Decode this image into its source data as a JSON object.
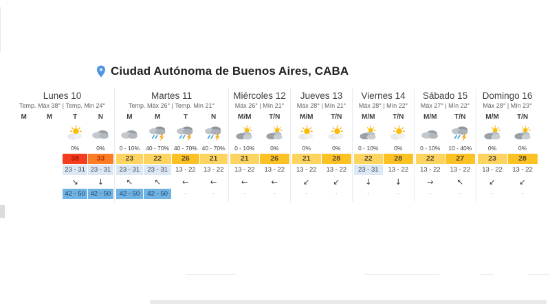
{
  "header": {
    "location_label": "Ciudad Autónoma de Buenos Aires, CABA",
    "pin_color": "#4e97e0"
  },
  "colors": {
    "temp_extreme": "#f53c1e",
    "temp_hot": "#fb7c23",
    "temp_warm_light": "#fdd45f",
    "temp_warm_dark": "#fcc122",
    "wind_range_highlight": "#dce8f5",
    "gust_highlight": "#6fb3e4"
  },
  "days": [
    {
      "name": "Lunes 10",
      "subtitle": "Temp. Máx 38° | Temp. Min 24°",
      "periods": [
        {
          "label": "M",
          "icon": "none",
          "precip": "",
          "temp": "",
          "temp_class": "",
          "range": "",
          "range_class": "",
          "wind": "",
          "gust": "",
          "gust_class": ""
        },
        {
          "label": "M",
          "icon": "none",
          "precip": "",
          "temp": "",
          "temp_class": "",
          "range": "",
          "range_class": "",
          "wind": "",
          "gust": "",
          "gust_class": ""
        },
        {
          "label": "T",
          "icon": "sun-cloud",
          "precip": "0%",
          "temp": "38",
          "temp_class": "t-red",
          "range": "23 - 31",
          "range_class": "bg-bluelight",
          "wind": "↘",
          "gust": "42 - 50",
          "gust_class": "bg-blue"
        },
        {
          "label": "N",
          "icon": "cloud",
          "precip": "0%",
          "temp": "33",
          "temp_class": "t-orange",
          "range": "23 - 31",
          "range_class": "bg-bluelight",
          "wind": "↓",
          "gust": "42 - 50",
          "gust_class": "bg-blue"
        }
      ]
    },
    {
      "name": "Martes 11",
      "subtitle": "Temp. Máx 26° | Temp. Min 21°",
      "periods": [
        {
          "label": "M",
          "icon": "cloud",
          "precip": "0 - 10%",
          "temp": "23",
          "temp_class": "t-amber-l",
          "range": "23 - 31",
          "range_class": "bg-bluelight",
          "wind": "↖",
          "gust": "42 - 50",
          "gust_class": "bg-blue"
        },
        {
          "label": "M",
          "icon": "storm",
          "precip": "40 - 70%",
          "temp": "22",
          "temp_class": "t-amber-l",
          "range": "23 - 31",
          "range_class": "bg-bluelight",
          "wind": "↖",
          "gust": "42 - 50",
          "gust_class": "bg-blue"
        },
        {
          "label": "T",
          "icon": "storm",
          "precip": "40 - 70%",
          "temp": "26",
          "temp_class": "t-amber",
          "range": "13 - 22",
          "range_class": "",
          "wind": "←",
          "gust": "-",
          "gust_class": "dash"
        },
        {
          "label": "N",
          "icon": "storm",
          "precip": "40 - 70%",
          "temp": "21",
          "temp_class": "t-amber-l",
          "range": "13 - 22",
          "range_class": "",
          "wind": "←",
          "gust": "-",
          "gust_class": "dash"
        }
      ]
    },
    {
      "name": "Miércoles 12",
      "subtitle": "Máx 26° | Mín 21°",
      "periods": [
        {
          "label": "M/M",
          "icon": "cloud-sun",
          "precip": "0 - 10%",
          "temp": "21",
          "temp_class": "t-amber-l",
          "range": "13 - 22",
          "range_class": "",
          "wind": "←",
          "gust": "-",
          "gust_class": "dash"
        },
        {
          "label": "T/N",
          "icon": "cloud-sun",
          "precip": "0%",
          "temp": "26",
          "temp_class": "t-amber",
          "range": "13 - 22",
          "range_class": "",
          "wind": "←",
          "gust": "-",
          "gust_class": "dash"
        }
      ]
    },
    {
      "name": "Jueves 13",
      "subtitle": "Máx 28° | Mín 21°",
      "periods": [
        {
          "label": "M/M",
          "icon": "sun-cloud",
          "precip": "0%",
          "temp": "21",
          "temp_class": "t-amber-l",
          "range": "13 - 22",
          "range_class": "",
          "wind": "↙",
          "gust": "-",
          "gust_class": "dash"
        },
        {
          "label": "T/N",
          "icon": "sun-cloud",
          "precip": "0%",
          "temp": "28",
          "temp_class": "t-amber",
          "range": "13 - 22",
          "range_class": "",
          "wind": "↙",
          "gust": "-",
          "gust_class": "dash"
        }
      ]
    },
    {
      "name": "Viernes 14",
      "subtitle": "Máx 28° | Mín 22°",
      "periods": [
        {
          "label": "M/M",
          "icon": "cloud-sun",
          "precip": "0 - 10%",
          "temp": "22",
          "temp_class": "t-amber-l",
          "range": "23 - 31",
          "range_class": "bg-bluelight",
          "wind": "↓",
          "gust": "-",
          "gust_class": "dash"
        },
        {
          "label": "T/N",
          "icon": "sun-cloud",
          "precip": "0%",
          "temp": "28",
          "temp_class": "t-amber",
          "range": "13 - 22",
          "range_class": "",
          "wind": "↓",
          "gust": "-",
          "gust_class": "dash"
        }
      ]
    },
    {
      "name": "Sábado 15",
      "subtitle": "Máx 27° | Mín 22°",
      "periods": [
        {
          "label": "M/M",
          "icon": "cloud",
          "precip": "0 - 10%",
          "temp": "22",
          "temp_class": "t-amber-l",
          "range": "13 - 22",
          "range_class": "",
          "wind": "→",
          "gust": "-",
          "gust_class": "dash"
        },
        {
          "label": "T/N",
          "icon": "storm",
          "precip": "10 - 40%",
          "temp": "27",
          "temp_class": "t-amber",
          "range": "13 - 22",
          "range_class": "",
          "wind": "↖",
          "gust": "-",
          "gust_class": "dash"
        }
      ]
    },
    {
      "name": "Domingo 16",
      "subtitle": "Máx 28° | Mín 23°",
      "periods": [
        {
          "label": "M/M",
          "icon": "cloud-sun",
          "precip": "0%",
          "temp": "23",
          "temp_class": "t-amber-l",
          "range": "13 - 22",
          "range_class": "",
          "wind": "↙",
          "gust": "-",
          "gust_class": "dash"
        },
        {
          "label": "T/N",
          "icon": "cloud-sun",
          "precip": "0%",
          "temp": "28",
          "temp_class": "t-amber",
          "range": "13 - 22",
          "range_class": "",
          "wind": "↙",
          "gust": "-",
          "gust_class": "dash"
        }
      ]
    }
  ]
}
